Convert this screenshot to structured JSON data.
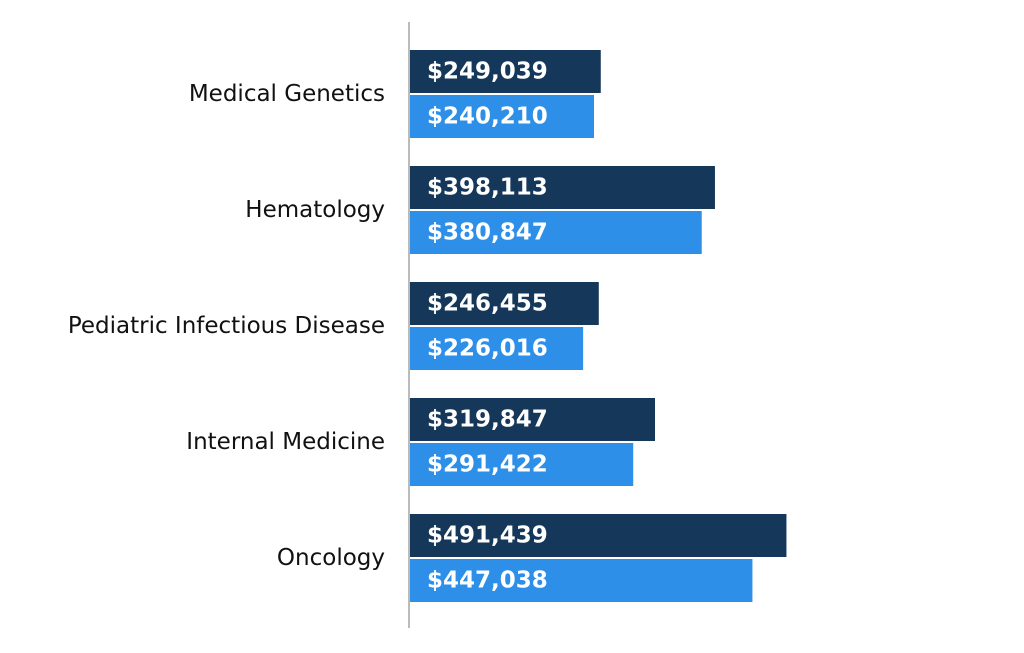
{
  "chart_data": {
    "type": "bar",
    "orientation": "horizontal",
    "categories": [
      "Medical Genetics",
      "Hematology",
      "Pediatric Infectious Disease",
      "Internal Medicine",
      "Oncology"
    ],
    "series": [
      {
        "values": [
          249039,
          398113,
          246455,
          319847,
          491439
        ],
        "labels": [
          "$249,039",
          "$398,113",
          "$246,455",
          "$319,847",
          "$491,439"
        ],
        "color": "#14375a"
      },
      {
        "values": [
          240210,
          380847,
          226016,
          291422,
          447038
        ],
        "labels": [
          "$240,210",
          "$380,847",
          "$226,016",
          "$291,422",
          "$447,038"
        ],
        "color": "#2e8fe8"
      }
    ],
    "xlim": [
      0,
      550000
    ],
    "grid": false,
    "legend": "none",
    "axis_color": "#bbbbbb"
  }
}
